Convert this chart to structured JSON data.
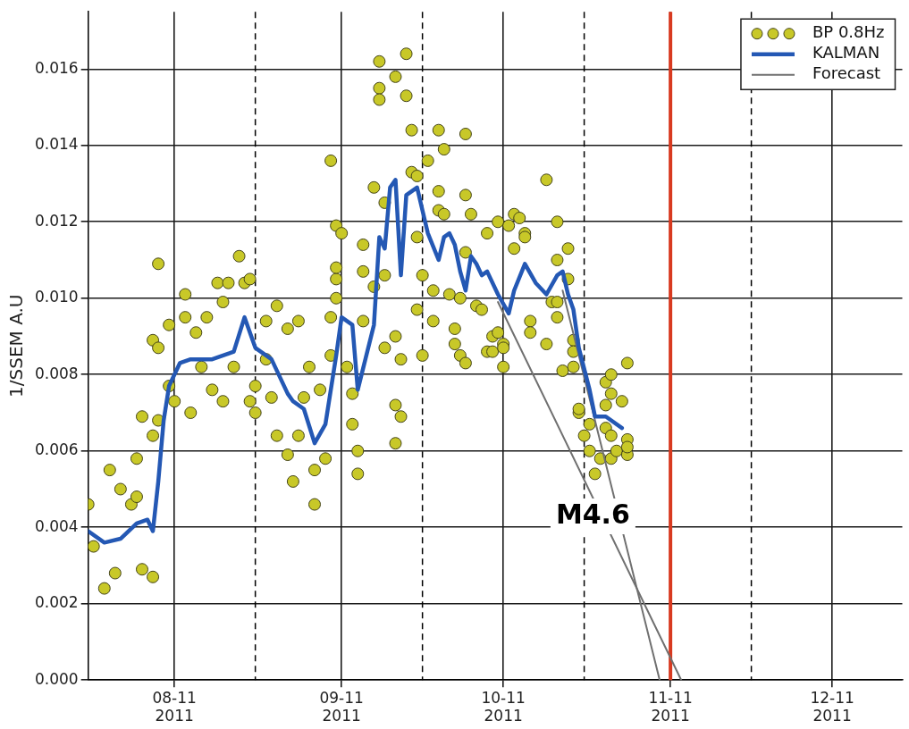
{
  "chart_data": {
    "type": "line",
    "ylabel": "1/SSEM A.U",
    "xlim": [
      "2011-07-16",
      "2011-12-14"
    ],
    "xticks": [
      {
        "value": "2011-08-01",
        "label": "08-11\n2011"
      },
      {
        "value": "2011-09-01",
        "label": "09-11\n2011"
      },
      {
        "value": "2011-10-01",
        "label": "10-11\n2011"
      },
      {
        "value": "2011-11-01",
        "label": "11-11\n2011"
      },
      {
        "value": "2011-12-01",
        "label": "12-11\n2011"
      }
    ],
    "ylim": [
      0,
      0.0175
    ],
    "yticks": [
      {
        "value": 0,
        "label": "0.000"
      },
      {
        "value": 0.002,
        "label": "0.002"
      },
      {
        "value": 0.004,
        "label": "0.004"
      },
      {
        "value": 0.006,
        "label": "0.006"
      },
      {
        "value": 0.008,
        "label": "0.008"
      },
      {
        "value": 0.01,
        "label": "0.010"
      },
      {
        "value": 0.012,
        "label": "0.012"
      },
      {
        "value": 0.014,
        "label": "0.014"
      },
      {
        "value": 0.016,
        "label": "0.016"
      }
    ],
    "grid": true,
    "legend": "top right",
    "series": [
      {
        "name": "BP 0.8Hz",
        "type": "scatter",
        "marker": "circle",
        "color": "#c8c828",
        "x": [
          "2011-07-16",
          "2011-07-17",
          "2011-07-19",
          "2011-07-20",
          "2011-07-21",
          "2011-07-22",
          "2011-07-24",
          "2011-07-25",
          "2011-07-25",
          "2011-07-26",
          "2011-07-26",
          "2011-07-28",
          "2011-07-28",
          "2011-07-28",
          "2011-07-29",
          "2011-07-29",
          "2011-07-29",
          "2011-07-31",
          "2011-07-31",
          "2011-08-01",
          "2011-08-03",
          "2011-08-03",
          "2011-08-04",
          "2011-08-05",
          "2011-08-06",
          "2011-08-07",
          "2011-08-08",
          "2011-08-09",
          "2011-08-10",
          "2011-08-10",
          "2011-08-11",
          "2011-08-12",
          "2011-08-13",
          "2011-08-14",
          "2011-08-15",
          "2011-08-15",
          "2011-08-16",
          "2011-08-16",
          "2011-08-18",
          "2011-08-18",
          "2011-08-19",
          "2011-08-20",
          "2011-08-20",
          "2011-08-22",
          "2011-08-22",
          "2011-08-23",
          "2011-08-24",
          "2011-08-24",
          "2011-08-25",
          "2011-08-26",
          "2011-08-27",
          "2011-08-27",
          "2011-08-28",
          "2011-08-29",
          "2011-08-30",
          "2011-08-30",
          "2011-08-30",
          "2011-08-31",
          "2011-08-31",
          "2011-08-31",
          "2011-08-31",
          "2011-09-01",
          "2011-09-02",
          "2011-09-03",
          "2011-09-03",
          "2011-09-04",
          "2011-09-04",
          "2011-09-05",
          "2011-09-05",
          "2011-09-05",
          "2011-09-07",
          "2011-09-07",
          "2011-09-08",
          "2011-09-08",
          "2011-09-08",
          "2011-09-09",
          "2011-09-09",
          "2011-09-09",
          "2011-09-11",
          "2011-09-11",
          "2011-09-11",
          "2011-09-11",
          "2011-09-12",
          "2011-09-12",
          "2011-09-13",
          "2011-09-13",
          "2011-09-14",
          "2011-09-14",
          "2011-09-15",
          "2011-09-15",
          "2011-09-15",
          "2011-09-16",
          "2011-09-16",
          "2011-09-17",
          "2011-09-18",
          "2011-09-18",
          "2011-09-19",
          "2011-09-19",
          "2011-09-19",
          "2011-09-20",
          "2011-09-20",
          "2011-09-21",
          "2011-09-22",
          "2011-09-22",
          "2011-09-23",
          "2011-09-23",
          "2011-09-24",
          "2011-09-24",
          "2011-09-24",
          "2011-09-24",
          "2011-09-25",
          "2011-09-26",
          "2011-09-27",
          "2011-09-28",
          "2011-09-28",
          "2011-09-29",
          "2011-09-29",
          "2011-09-30",
          "2011-09-30",
          "2011-10-01",
          "2011-10-01",
          "2011-10-01",
          "2011-10-02",
          "2011-10-03",
          "2011-10-03",
          "2011-10-04",
          "2011-10-05",
          "2011-10-05",
          "2011-10-06",
          "2011-10-06",
          "2011-10-09",
          "2011-10-09",
          "2011-10-10",
          "2011-10-11",
          "2011-10-11",
          "2011-10-11",
          "2011-10-11",
          "2011-10-12",
          "2011-10-13",
          "2011-10-13",
          "2011-10-14",
          "2011-10-14",
          "2011-10-14",
          "2011-10-15",
          "2011-10-15",
          "2011-10-16",
          "2011-10-17",
          "2011-10-17",
          "2011-10-18",
          "2011-10-19",
          "2011-10-20",
          "2011-10-20",
          "2011-10-20",
          "2011-10-21",
          "2011-10-21",
          "2011-10-21",
          "2011-10-21",
          "2011-10-22",
          "2011-10-23",
          "2011-10-24",
          "2011-10-24",
          "2011-10-24",
          "2011-10-24"
        ],
        "values": [
          0.0046,
          0.0035,
          0.0024,
          0.0055,
          0.0028,
          0.005,
          0.0046,
          0.0048,
          0.0058,
          0.0069,
          0.0029,
          0.0027,
          0.0089,
          0.0064,
          0.0068,
          0.0109,
          0.0087,
          0.0077,
          0.0093,
          0.0073,
          0.0101,
          0.0095,
          0.007,
          0.0091,
          0.0082,
          0.0095,
          0.0076,
          0.0104,
          0.0099,
          0.0073,
          0.0104,
          0.0082,
          0.0111,
          0.0104,
          0.0105,
          0.0073,
          0.007,
          0.0077,
          0.0094,
          0.0084,
          0.0074,
          0.0064,
          0.0098,
          0.0059,
          0.0092,
          0.0052,
          0.0064,
          0.0094,
          0.0074,
          0.0082,
          0.0055,
          0.0046,
          0.0076,
          0.0058,
          0.0085,
          0.0136,
          0.0095,
          0.0119,
          0.0105,
          0.0108,
          0.01,
          0.0117,
          0.0082,
          0.0075,
          0.0067,
          0.006,
          0.0054,
          0.0107,
          0.0114,
          0.0094,
          0.0129,
          0.0103,
          0.0162,
          0.0155,
          0.0152,
          0.0125,
          0.0087,
          0.0106,
          0.0072,
          0.0158,
          0.009,
          0.0062,
          0.0069,
          0.0084,
          0.0164,
          0.0153,
          0.0133,
          0.0144,
          0.0132,
          0.0116,
          0.0097,
          0.0085,
          0.0106,
          0.0136,
          0.0094,
          0.0102,
          0.0144,
          0.0128,
          0.0123,
          0.0139,
          0.0122,
          0.0101,
          0.0092,
          0.0088,
          0.01,
          0.0085,
          0.0083,
          0.0112,
          0.0127,
          0.0143,
          0.0122,
          0.0098,
          0.0097,
          0.0117,
          0.0086,
          0.009,
          0.0086,
          0.0091,
          0.012,
          0.0088,
          0.0082,
          0.0087,
          0.0119,
          0.0113,
          0.0122,
          0.0121,
          0.0117,
          0.0116,
          0.0094,
          0.0091,
          0.0088,
          0.0131,
          0.0099,
          0.0099,
          0.0095,
          0.012,
          0.011,
          0.0081,
          0.0113,
          0.0105,
          0.0089,
          0.0086,
          0.0082,
          0.007,
          0.0071,
          0.0064,
          0.0067,
          0.006,
          0.0054,
          0.0058,
          0.0078,
          0.0066,
          0.0072,
          0.008,
          0.0075,
          0.0064,
          0.0058,
          0.006,
          0.0073,
          0.0063,
          0.0083,
          0.0059,
          0.0061
        ]
      },
      {
        "name": "KALMAN",
        "color": "#2458b4",
        "x": [
          "2011-07-16",
          "2011-07-19",
          "2011-07-22",
          "2011-07-25",
          "2011-07-27",
          "2011-07-28",
          "2011-07-29",
          "2011-07-30",
          "2011-07-31",
          "2011-08-02",
          "2011-08-04",
          "2011-08-08",
          "2011-08-12",
          "2011-08-14",
          "2011-08-16",
          "2011-08-19",
          "2011-08-22",
          "2011-08-23",
          "2011-08-25",
          "2011-08-27",
          "2011-08-29",
          "2011-08-31",
          "2011-09-01",
          "2011-09-03",
          "2011-09-04",
          "2011-09-07",
          "2011-09-08",
          "2011-09-09",
          "2011-09-10",
          "2011-09-11",
          "2011-09-12",
          "2011-09-13",
          "2011-09-15",
          "2011-09-16",
          "2011-09-17",
          "2011-09-19",
          "2011-09-20",
          "2011-09-21",
          "2011-09-22",
          "2011-09-23",
          "2011-09-24",
          "2011-09-25",
          "2011-09-26",
          "2011-09-27",
          "2011-09-28",
          "2011-09-30",
          "2011-10-02",
          "2011-10-03",
          "2011-10-05",
          "2011-10-07",
          "2011-10-09",
          "2011-10-11",
          "2011-10-12",
          "2011-10-13",
          "2011-10-14",
          "2011-10-15",
          "2011-10-17",
          "2011-10-18",
          "2011-10-20",
          "2011-10-23"
        ],
        "values": [
          0.0039,
          0.0036,
          0.0037,
          0.0041,
          0.0042,
          0.0039,
          0.0052,
          0.0068,
          0.0077,
          0.0083,
          0.0084,
          0.0084,
          0.0086,
          0.0095,
          0.0087,
          0.0084,
          0.0075,
          0.0073,
          0.0071,
          0.0062,
          0.0067,
          0.0085,
          0.0095,
          0.0093,
          0.0076,
          0.0093,
          0.0116,
          0.0113,
          0.0129,
          0.0131,
          0.0106,
          0.0127,
          0.0129,
          0.0123,
          0.0117,
          0.011,
          0.0116,
          0.0117,
          0.0114,
          0.0107,
          0.0102,
          0.0111,
          0.0109,
          0.0106,
          0.0107,
          0.0101,
          0.0096,
          0.0102,
          0.0109,
          0.0104,
          0.0101,
          0.0106,
          0.0107,
          0.0101,
          0.0097,
          0.0087,
          0.0076,
          0.0069,
          0.0069,
          0.0066
        ]
      },
      {
        "name": "Forecast",
        "color": "#707070",
        "x": [
          "2011-09-30",
          "2011-11-03"
        ],
        "values": [
          0.0099,
          0
        ]
      },
      {
        "color": "#707070",
        "x": [
          "2011-10-12",
          "2011-10-30"
        ],
        "values": [
          0.0102,
          0
        ]
      }
    ],
    "ref_lines": [
      {
        "axis": "x",
        "value": "2011-11-01",
        "color": "#d83a20",
        "line_style": "solid"
      },
      {
        "axis": "x",
        "value": "2011-08-16",
        "color": "#000000",
        "line_style": "dashed"
      },
      {
        "axis": "x",
        "value": "2011-09-16",
        "color": "#000000",
        "line_style": "dashed"
      },
      {
        "axis": "x",
        "value": "2011-10-16",
        "color": "#000000",
        "line_style": "dashed"
      },
      {
        "axis": "x",
        "value": "2011-11-16",
        "color": "#000000",
        "line_style": "dashed"
      }
    ],
    "annotations": [
      "M4.6"
    ]
  }
}
